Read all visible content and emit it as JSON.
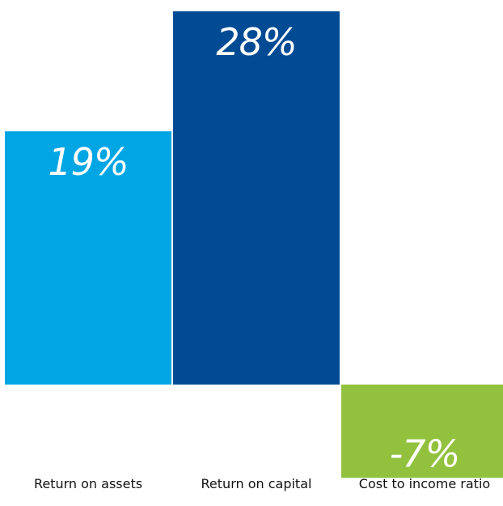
{
  "chart_data": {
    "type": "bar",
    "categories": [
      "Return on assets",
      "Return on capital",
      "Cost to income ratio"
    ],
    "values": [
      19,
      28,
      -7
    ],
    "data_labels": [
      "19%",
      "28%",
      "-7%"
    ],
    "colors": [
      "#00a6e4",
      "#004b93",
      "#92c13e"
    ],
    "title": "",
    "xlabel": "",
    "ylabel": "",
    "ylim": [
      -7,
      28
    ],
    "grid": false,
    "legend": "none"
  }
}
